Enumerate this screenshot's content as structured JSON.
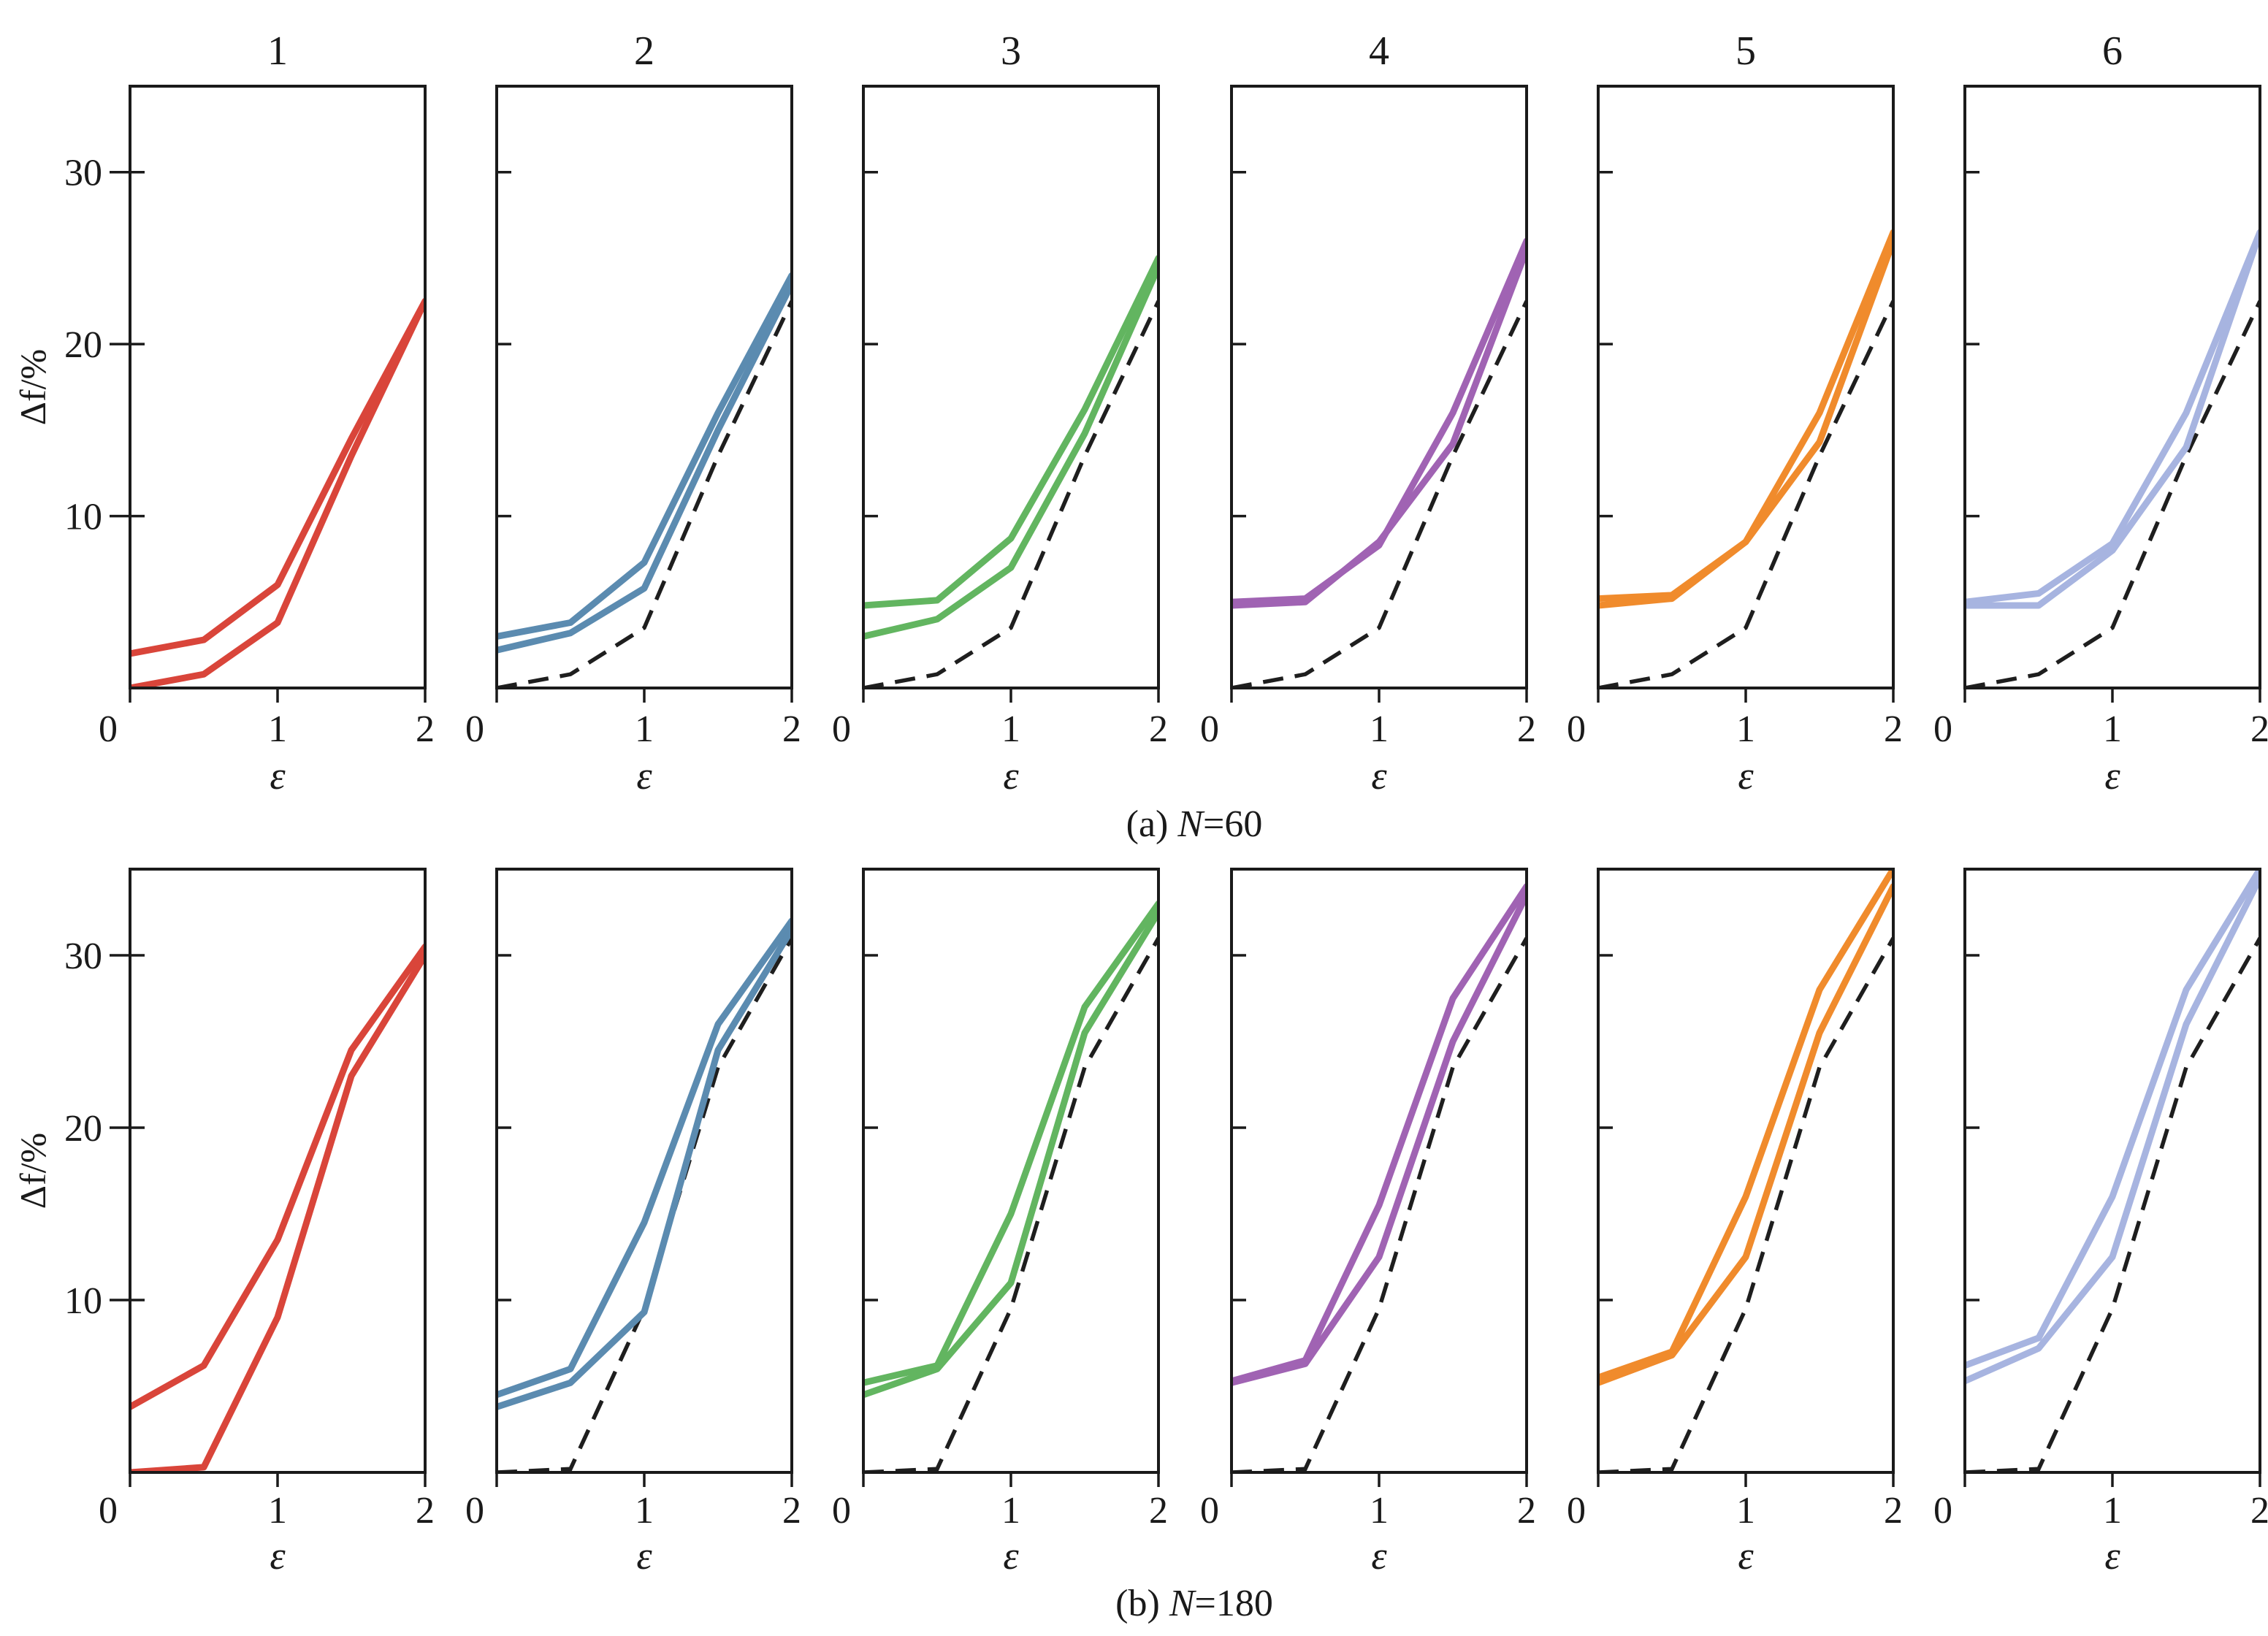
{
  "chart_data": [
    {
      "type": "line",
      "caption_prefix": "(a) ",
      "caption_var": "N",
      "caption_suffix": "=60",
      "xlabel": "ε",
      "ylabel": "Δf/%",
      "xlim": [
        0,
        2
      ],
      "ylim": [
        0,
        35
      ],
      "x_ticks": [
        "0",
        "1",
        "2"
      ],
      "y_ticks": [
        "10",
        "20",
        "30"
      ],
      "reference_series": {
        "name": "reference (dashed)",
        "x": [
          0,
          0.5,
          1,
          1.5,
          2
        ],
        "y": [
          0,
          0.8,
          3.5,
          13.5,
          22.5
        ]
      },
      "panels": [
        {
          "title": "1",
          "color": "#d9453a",
          "show_reference": false,
          "series": [
            {
              "name": "upper",
              "x": [
                0,
                0.5,
                1,
                1.5,
                2
              ],
              "y": [
                2,
                2.8,
                6,
                14.5,
                22.5
              ]
            },
            {
              "name": "lower",
              "x": [
                0,
                0.5,
                1,
                1.5,
                2
              ],
              "y": [
                0,
                0.8,
                3.8,
                13.5,
                22.5
              ]
            }
          ]
        },
        {
          "title": "2",
          "color": "#5b8bb0",
          "show_reference": true,
          "series": [
            {
              "name": "upper",
              "x": [
                0,
                0.5,
                1,
                1.5,
                2
              ],
              "y": [
                3,
                3.8,
                7.3,
                16,
                24
              ]
            },
            {
              "name": "lower",
              "x": [
                0,
                0.5,
                1,
                1.5,
                2
              ],
              "y": [
                2.2,
                3.2,
                5.8,
                15,
                23.5
              ]
            }
          ]
        },
        {
          "title": "3",
          "color": "#62b560",
          "show_reference": true,
          "series": [
            {
              "name": "upper",
              "x": [
                0,
                0.5,
                1,
                1.5,
                2
              ],
              "y": [
                4.8,
                5.1,
                8.7,
                16.2,
                25
              ]
            },
            {
              "name": "lower",
              "x": [
                0,
                0.5,
                1,
                1.5,
                2
              ],
              "y": [
                3,
                4,
                7,
                14.8,
                24.5
              ]
            }
          ]
        },
        {
          "title": "4",
          "color": "#a063b3",
          "show_reference": true,
          "series": [
            {
              "name": "upper",
              "x": [
                0,
                0.5,
                1,
                1.5,
                2
              ],
              "y": [
                5,
                5.2,
                8.3,
                16,
                26
              ]
            },
            {
              "name": "lower",
              "x": [
                0,
                0.5,
                1,
                1.5,
                2
              ],
              "y": [
                4.8,
                5,
                8.5,
                14.2,
                25.5
              ]
            }
          ]
        },
        {
          "title": "5",
          "color": "#f08b2c",
          "show_reference": true,
          "series": [
            {
              "name": "upper",
              "x": [
                0,
                0.5,
                1,
                1.5,
                2
              ],
              "y": [
                5.2,
                5.4,
                8.5,
                16,
                26.5
              ]
            },
            {
              "name": "lower",
              "x": [
                0,
                0.5,
                1,
                1.5,
                2
              ],
              "y": [
                4.8,
                5.2,
                8.5,
                14.3,
                26
              ]
            }
          ]
        },
        {
          "title": "6",
          "color": "#a7b4e0",
          "show_reference": true,
          "series": [
            {
              "name": "upper",
              "x": [
                0,
                0.5,
                1,
                1.5,
                2
              ],
              "y": [
                5,
                5.5,
                8.4,
                16,
                26.5
              ]
            },
            {
              "name": "lower",
              "x": [
                0,
                0.5,
                1,
                1.5,
                2
              ],
              "y": [
                4.8,
                4.8,
                8,
                14,
                26.5
              ]
            }
          ]
        }
      ]
    },
    {
      "type": "line",
      "caption_prefix": "(b) ",
      "caption_var": "N",
      "caption_suffix": "=180",
      "xlabel": "ε",
      "ylabel": "Δf/%",
      "xlim": [
        0,
        2
      ],
      "ylim": [
        0,
        35
      ],
      "x_ticks": [
        "0",
        "1",
        "2"
      ],
      "y_ticks": [
        "10",
        "20",
        "30"
      ],
      "reference_series": {
        "name": "reference (dashed)",
        "x": [
          0,
          0.5,
          1,
          1.5,
          2
        ],
        "y": [
          0,
          0.2,
          9.5,
          23.5,
          31
        ]
      },
      "panels": [
        {
          "title": "",
          "color": "#d9453a",
          "show_reference": false,
          "series": [
            {
              "name": "upper",
              "x": [
                0,
                0.5,
                1,
                1.5,
                2
              ],
              "y": [
                3.8,
                6.2,
                13.5,
                24.5,
                30.5
              ]
            },
            {
              "name": "lower",
              "x": [
                0,
                0.5,
                1,
                1.5,
                2
              ],
              "y": [
                0,
                0.3,
                9,
                23,
                30
              ]
            }
          ]
        },
        {
          "title": "",
          "color": "#5b8bb0",
          "show_reference": true,
          "series": [
            {
              "name": "upper",
              "x": [
                0,
                0.5,
                1,
                1.5,
                2
              ],
              "y": [
                4.5,
                6,
                14.5,
                26,
                32
              ]
            },
            {
              "name": "lower",
              "x": [
                0,
                0.5,
                1,
                1.5,
                2
              ],
              "y": [
                3.8,
                5.2,
                9.3,
                24.5,
                31.5
              ]
            }
          ]
        },
        {
          "title": "",
          "color": "#62b560",
          "show_reference": true,
          "series": [
            {
              "name": "upper",
              "x": [
                0,
                0.5,
                1,
                1.5,
                2
              ],
              "y": [
                5.2,
                6.2,
                15,
                27,
                33
              ]
            },
            {
              "name": "lower",
              "x": [
                0,
                0.5,
                1,
                1.5,
                2
              ],
              "y": [
                4.5,
                6,
                11,
                25.5,
                32.5
              ]
            }
          ]
        },
        {
          "title": "",
          "color": "#a063b3",
          "show_reference": true,
          "series": [
            {
              "name": "upper",
              "x": [
                0,
                0.5,
                1,
                1.5,
                2
              ],
              "y": [
                5.3,
                6.5,
                15.5,
                27.5,
                34
              ]
            },
            {
              "name": "lower",
              "x": [
                0,
                0.5,
                1,
                1.5,
                2
              ],
              "y": [
                5.2,
                6.3,
                12.5,
                25,
                33.5
              ]
            }
          ]
        },
        {
          "title": "",
          "color": "#f08b2c",
          "show_reference": true,
          "series": [
            {
              "name": "upper",
              "x": [
                0,
                0.5,
                1,
                1.5,
                2
              ],
              "y": [
                5.5,
                7,
                16,
                28,
                35
              ]
            },
            {
              "name": "lower",
              "x": [
                0,
                0.5,
                1,
                1.5,
                2
              ],
              "y": [
                5.2,
                6.8,
                12.5,
                25.5,
                34
              ]
            }
          ]
        },
        {
          "title": "",
          "color": "#a7b4e0",
          "show_reference": true,
          "series": [
            {
              "name": "upper",
              "x": [
                0,
                0.5,
                1,
                1.5,
                2
              ],
              "y": [
                6.2,
                7.8,
                16,
                28,
                35
              ]
            },
            {
              "name": "lower",
              "x": [
                0,
                0.5,
                1,
                1.5,
                2
              ],
              "y": [
                5.3,
                7.2,
                12.5,
                26,
                34.5
              ]
            }
          ]
        }
      ]
    }
  ]
}
